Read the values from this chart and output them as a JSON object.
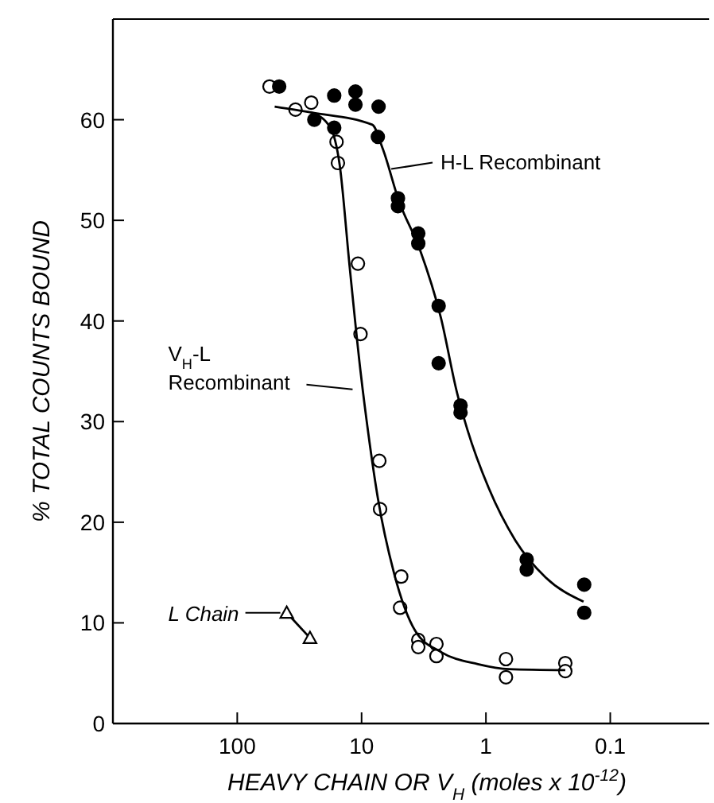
{
  "chart_data": {
    "type": "scatter",
    "xlabel": "HEAVY CHAIN OR V$_{H}$ (moles x 10$^{-12}$)",
    "ylabel": "% TOTAL COUNTS BOUND",
    "log": "x",
    "xlim": [
      1000,
      0.016
    ],
    "xticks": [
      100,
      10,
      1,
      0.1
    ],
    "ylim": [
      0,
      70
    ],
    "yticks": [
      0,
      10,
      20,
      30,
      40,
      50,
      60
    ],
    "grid": false,
    "series": [
      {
        "marker": "circle",
        "color": "#ffffff",
        "x": [
          55,
          34,
          25.4,
          15.9,
          15.5,
          10.7,
          10.2,
          7.2,
          7.1,
          4.8,
          4.9,
          3.5,
          3.5,
          2.5,
          2.5,
          0.69,
          0.69,
          0.23,
          0.23
        ],
        "values": [
          63.3,
          61.0,
          61.7,
          57.8,
          55.7,
          45.7,
          38.7,
          26.1,
          21.3,
          14.6,
          11.5,
          8.3,
          7.6,
          7.9,
          6.7,
          6.4,
          4.6,
          6.0,
          5.2
        ]
      },
      {
        "marker": "circle",
        "color": "#000000",
        "x": [
          46,
          24,
          16.6,
          16.6,
          11.2,
          11.2,
          7.3,
          7.4,
          5.1,
          5.1,
          3.5,
          3.5,
          2.4,
          2.4,
          1.6,
          1.6,
          0.47,
          0.47,
          0.162,
          0.162
        ],
        "values": [
          63.3,
          60.0,
          59.2,
          62.4,
          62.8,
          61.5,
          61.3,
          58.3,
          52.2,
          51.4,
          48.7,
          47.7,
          41.5,
          35.8,
          31.6,
          30.9,
          16.3,
          15.3,
          13.8,
          11.0
        ]
      },
      {
        "type": "line",
        "marker": "none",
        "color": "#000000",
        "x": [
          50,
          25,
          8.2,
          6.75,
          5.0,
          3.4,
          2.3,
          1.71,
          1.41,
          0.95,
          0.58,
          0.33,
          0.164
        ],
        "values": [
          61.3,
          60.7,
          59.5,
          57.1,
          51.9,
          47.1,
          40.3,
          32.9,
          29.2,
          23.4,
          18.2,
          14.5,
          12.1
        ]
      },
      {
        "type": "line",
        "marker": "none",
        "color": "#000000",
        "x": [
          25,
          17.8,
          15,
          12.5,
          10.2,
          8.8,
          7.4,
          5.5,
          3.7,
          2.3,
          1.16,
          0.65,
          0.23
        ],
        "values": [
          60.7,
          59.2,
          55.5,
          45.5,
          35,
          28.7,
          22.4,
          15,
          9.2,
          7.1,
          5.9,
          5.4,
          5.3
        ]
      },
      {
        "type": "line",
        "marker": "triangle",
        "color": "#000000",
        "x": [
          40,
          26
        ],
        "values": [
          11.0,
          8.5
        ]
      }
    ],
    "annotations": [
      {
        "text": "H-L Recombinant",
        "x": 6.5,
        "y": 55.1
      },
      {
        "text": "V$_{H}$-L\nRecombinant",
        "x": 10.5,
        "y": 33.2
      },
      {
        "text": "L Chain",
        "x": 40,
        "y": 11.0
      }
    ]
  }
}
